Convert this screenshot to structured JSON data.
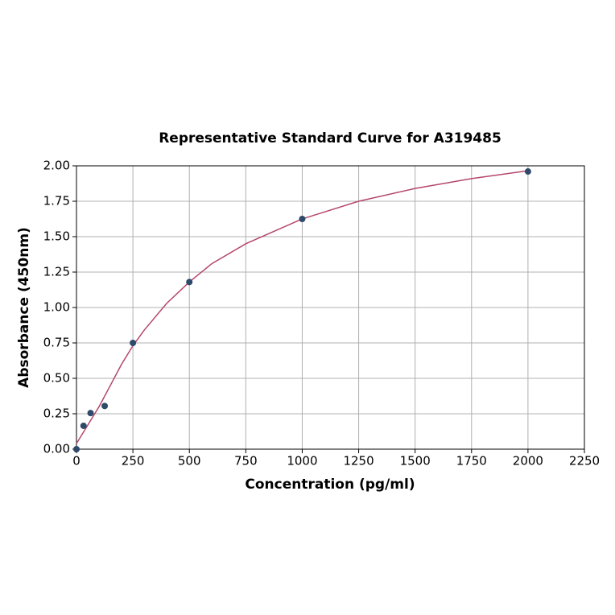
{
  "chart_data": {
    "type": "scatter",
    "title": "Representative Standard Curve for A319485",
    "xlabel": "Concentration (pg/ml)",
    "ylabel": "Absorbance (450nm)",
    "x": [
      0,
      31.25,
      62.5,
      125,
      250,
      500,
      1000,
      2000
    ],
    "values": [
      0.0,
      0.165,
      0.255,
      0.305,
      0.75,
      1.18,
      1.625,
      1.96
    ],
    "color": "#2e4a6b",
    "curve": {
      "x": [
        0,
        50,
        100,
        150,
        200,
        250,
        300,
        400,
        500,
        600,
        750,
        1000,
        1250,
        1500,
        1750,
        2000
      ],
      "values": [
        0.04,
        0.17,
        0.3,
        0.45,
        0.6,
        0.73,
        0.84,
        1.03,
        1.18,
        1.31,
        1.45,
        1.625,
        1.75,
        1.84,
        1.91,
        1.965
      ],
      "color": "#b5476a"
    },
    "xlim": [
      0,
      2250
    ],
    "xticks": [
      0,
      250,
      500,
      750,
      1000,
      1250,
      1500,
      1750,
      2000,
      2250
    ],
    "ylim": [
      0,
      2
    ],
    "yticks": [
      {
        "value": 0,
        "label": "0.00"
      },
      {
        "value": 0.25,
        "label": "0.25"
      },
      {
        "value": 0.5,
        "label": "0.50"
      },
      {
        "value": 0.75,
        "label": "0.75"
      },
      {
        "value": 1,
        "label": "1.00"
      },
      {
        "value": 1.25,
        "label": "1.25"
      },
      {
        "value": 1.5,
        "label": "1.50"
      },
      {
        "value": 1.75,
        "label": "1.75"
      },
      {
        "value": 2,
        "label": "2.00"
      }
    ],
    "grid": true
  }
}
